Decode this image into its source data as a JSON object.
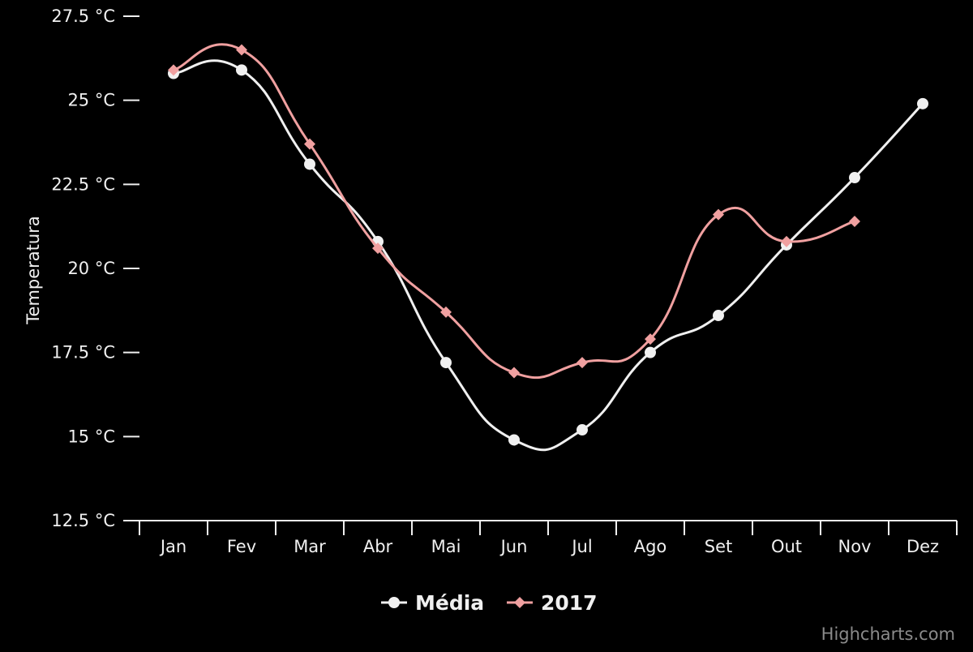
{
  "chart_data": {
    "type": "line",
    "categories": [
      "Jan",
      "Fev",
      "Mar",
      "Abr",
      "Mai",
      "Jun",
      "Jul",
      "Ago",
      "Set",
      "Out",
      "Nov",
      "Dez"
    ],
    "series": [
      {
        "name": "Média",
        "color": "#f0f0f0",
        "marker": "circle",
        "values": [
          25.8,
          25.9,
          23.1,
          20.8,
          17.2,
          14.9,
          15.2,
          17.5,
          18.6,
          20.7,
          22.7,
          24.9
        ]
      },
      {
        "name": "2017",
        "color": "#f0a0a0",
        "marker": "diamond",
        "values": [
          25.9,
          26.5,
          23.7,
          20.6,
          18.7,
          16.9,
          17.2,
          17.9,
          21.6,
          20.8,
          21.4,
          null
        ]
      }
    ],
    "ylabel": "Temperatura",
    "ylim": [
      12.5,
      27.5
    ],
    "yticks": [
      12.5,
      15,
      17.5,
      20,
      22.5,
      25,
      27.5
    ],
    "y_unit": " °C",
    "legend_position": "bottom-center",
    "credits": "Highcharts.com"
  }
}
